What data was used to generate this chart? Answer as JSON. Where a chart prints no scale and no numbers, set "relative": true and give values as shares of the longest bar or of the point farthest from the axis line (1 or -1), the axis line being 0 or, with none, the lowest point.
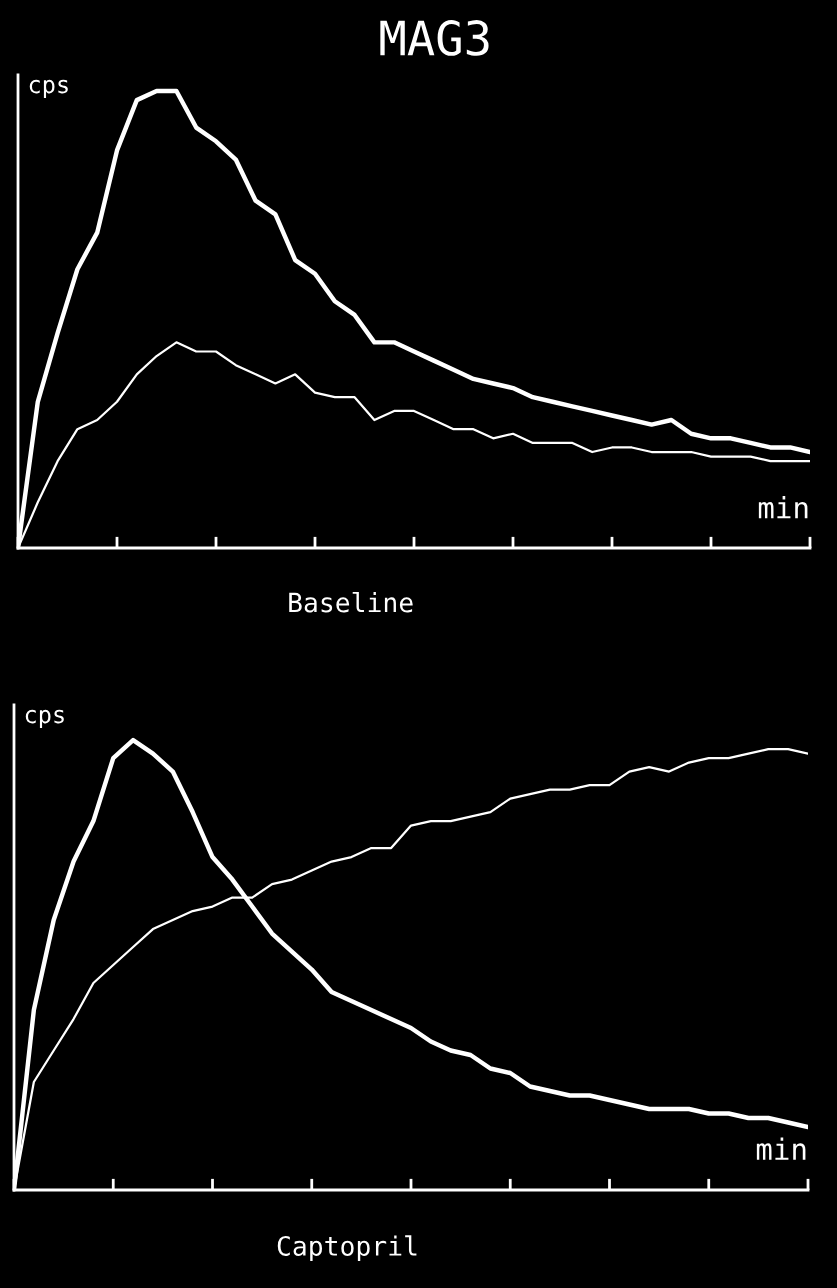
{
  "chart_data": [
    {
      "type": "line",
      "title": "MAG3",
      "subtitle": "Baseline",
      "ylabel": "cps",
      "xlabel": "min",
      "relative": true,
      "grid": false,
      "legend": false,
      "categories": [
        null,
        null,
        null,
        null,
        null,
        null,
        null,
        null,
        null,
        null,
        null,
        null,
        null,
        null,
        null,
        null,
        null,
        null,
        null,
        null,
        null,
        null,
        null,
        null,
        null,
        null,
        null,
        null,
        null,
        null,
        null,
        null,
        null,
        null,
        null,
        null,
        null,
        null,
        null,
        null,
        null
      ],
      "series": [
        {
          "color": "#ffffff",
          "values": [
            0,
            0.32,
            0.47,
            0.61,
            0.69,
            0.87,
            0.98,
            1.0,
            1.0,
            0.92,
            0.89,
            0.85,
            0.76,
            0.73,
            0.63,
            0.6,
            0.54,
            0.51,
            0.45,
            0.45,
            0.43,
            0.41,
            0.39,
            0.37,
            0.36,
            0.35,
            0.33,
            0.32,
            0.31,
            0.3,
            0.29,
            0.28,
            0.27,
            0.28,
            0.25,
            0.24,
            0.24,
            0.23,
            0.22,
            0.22,
            0.21
          ]
        },
        {
          "color": "#ffffff",
          "values": [
            0,
            0.1,
            0.19,
            0.26,
            0.28,
            0.32,
            0.38,
            0.42,
            0.45,
            0.43,
            0.43,
            0.4,
            0.38,
            0.36,
            0.38,
            0.34,
            0.33,
            0.33,
            0.28,
            0.3,
            0.3,
            0.28,
            0.26,
            0.26,
            0.24,
            0.25,
            0.23,
            0.23,
            0.23,
            0.21,
            0.22,
            0.22,
            0.21,
            0.21,
            0.21,
            0.2,
            0.2,
            0.2,
            0.19,
            0.19,
            0.19
          ]
        }
      ]
    },
    {
      "type": "line",
      "subtitle": "Captopril",
      "ylabel": "cps",
      "xlabel": "min",
      "relative": true,
      "grid": false,
      "legend": false,
      "categories": [
        null,
        null,
        null,
        null,
        null,
        null,
        null,
        null,
        null,
        null,
        null,
        null,
        null,
        null,
        null,
        null,
        null,
        null,
        null,
        null,
        null,
        null,
        null,
        null,
        null,
        null,
        null,
        null,
        null,
        null,
        null,
        null,
        null,
        null,
        null,
        null,
        null,
        null,
        null,
        null,
        null
      ],
      "series": [
        {
          "color": "#ffffff",
          "values": [
            0,
            0.4,
            0.6,
            0.73,
            0.82,
            0.96,
            1.0,
            0.97,
            0.93,
            0.84,
            0.74,
            0.69,
            0.63,
            0.57,
            0.53,
            0.49,
            0.44,
            0.42,
            0.4,
            0.38,
            0.36,
            0.33,
            0.31,
            0.3,
            0.27,
            0.26,
            0.23,
            0.22,
            0.21,
            0.21,
            0.2,
            0.19,
            0.18,
            0.18,
            0.18,
            0.17,
            0.17,
            0.16,
            0.16,
            0.15,
            0.14
          ]
        },
        {
          "color": "#ffffff",
          "values": [
            0,
            0.24,
            0.31,
            0.38,
            0.46,
            0.5,
            0.54,
            0.58,
            0.6,
            0.62,
            0.63,
            0.65,
            0.65,
            0.68,
            0.69,
            0.71,
            0.73,
            0.74,
            0.76,
            0.76,
            0.81,
            0.82,
            0.82,
            0.83,
            0.84,
            0.87,
            0.88,
            0.89,
            0.89,
            0.9,
            0.9,
            0.93,
            0.94,
            0.93,
            0.95,
            0.96,
            0.96,
            0.97,
            0.98,
            0.98,
            0.97
          ]
        }
      ]
    }
  ]
}
